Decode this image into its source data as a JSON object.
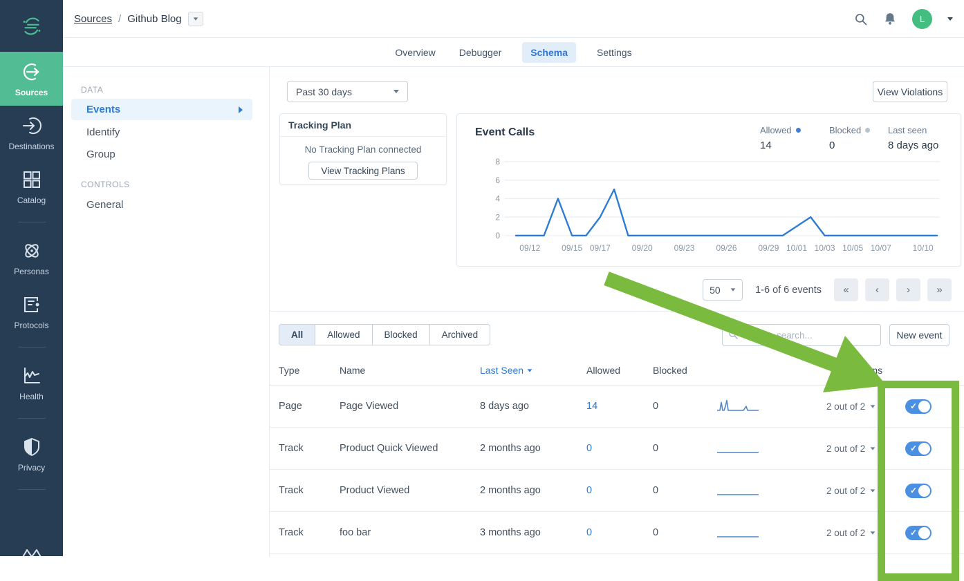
{
  "colors": {
    "sidebar_navy": "#263D54",
    "brand_green": "#52BD94",
    "avatar_green": "#43BD80",
    "link_blue": "#2E7BD3",
    "chart_line": "#2E7BD3",
    "blocked_gray": "#B9C2CC",
    "annotation_green": "#79BA3F",
    "toggle_blue": "#4A90E2"
  },
  "sidebar": {
    "items": [
      {
        "label": "Sources",
        "icon": "sources-icon",
        "active": true
      },
      {
        "label": "Destinations",
        "icon": "destinations-icon",
        "active": false
      },
      {
        "label": "Catalog",
        "icon": "catalog-icon",
        "active": false
      },
      {
        "label": "Personas",
        "icon": "personas-icon",
        "active": false
      },
      {
        "label": "Protocols",
        "icon": "protocols-icon",
        "active": false
      },
      {
        "label": "Health",
        "icon": "health-icon",
        "active": false
      },
      {
        "label": "Privacy",
        "icon": "privacy-icon",
        "active": false
      }
    ]
  },
  "header": {
    "breadcrumb": {
      "root": "Sources",
      "sep": "/",
      "current": "Github Blog"
    },
    "avatar_initial": "L"
  },
  "tabs": {
    "items": [
      {
        "label": "Overview",
        "active": false
      },
      {
        "label": "Debugger",
        "active": false
      },
      {
        "label": "Schema",
        "active": true
      },
      {
        "label": "Settings",
        "active": false
      }
    ]
  },
  "left_panel": {
    "sections": [
      {
        "heading": "DATA",
        "items": [
          {
            "label": "Events",
            "active": true
          },
          {
            "label": "Identify",
            "active": false
          },
          {
            "label": "Group",
            "active": false
          }
        ]
      },
      {
        "heading": "CONTROLS",
        "items": [
          {
            "label": "General",
            "active": false
          }
        ]
      }
    ]
  },
  "toolbar": {
    "date_range": "Past 30 days",
    "view_violations": "View Violations"
  },
  "tracking_plan": {
    "title": "Tracking Plan",
    "message": "No Tracking Plan connected",
    "button": "View Tracking Plans"
  },
  "event_calls": {
    "title": "Event Calls",
    "legend": {
      "allowed_label": "Allowed",
      "allowed_value": "14",
      "blocked_label": "Blocked",
      "blocked_value": "0",
      "last_seen_label": "Last seen",
      "last_seen_value": "8 days ago"
    }
  },
  "chart_data": {
    "type": "line",
    "title": "Event Calls",
    "series_name": "Allowed",
    "x": [
      "09/11",
      "09/12",
      "09/13",
      "09/14",
      "09/15",
      "09/16",
      "09/17",
      "09/18",
      "09/19",
      "09/20",
      "09/21",
      "09/22",
      "09/23",
      "09/24",
      "09/25",
      "09/26",
      "09/27",
      "09/28",
      "09/29",
      "09/30",
      "10/01",
      "10/02",
      "10/03",
      "10/04",
      "10/05",
      "10/06",
      "10/07",
      "10/08",
      "10/09",
      "10/10",
      "10/11"
    ],
    "values": [
      0,
      0,
      0,
      4,
      0,
      0,
      2,
      5,
      0,
      0,
      0,
      0,
      0,
      0,
      0,
      0,
      0,
      0,
      0,
      0,
      1,
      2,
      0,
      0,
      0,
      0,
      0,
      0,
      0,
      0,
      0
    ],
    "x_tick_labels": [
      "09/12",
      "09/15",
      "09/17",
      "09/20",
      "09/23",
      "09/26",
      "09/29",
      "10/01",
      "10/03",
      "10/05",
      "10/07",
      "10/10"
    ],
    "yticks": [
      0,
      2,
      4,
      6,
      8
    ],
    "ylim": [
      0,
      8
    ],
    "grid": true,
    "legend_position": "top-right"
  },
  "pagination": {
    "page_size": "50",
    "range_text": "1-6 of 6 events",
    "first": "«",
    "prev": "‹",
    "next": "›",
    "last": "»"
  },
  "filters": {
    "items": [
      {
        "label": "All",
        "active": true
      },
      {
        "label": "Allowed",
        "active": false
      },
      {
        "label": "Blocked",
        "active": false
      },
      {
        "label": "Archived",
        "active": false
      }
    ]
  },
  "search": {
    "placeholder": "Type to search..."
  },
  "actions": {
    "new_event": "New event"
  },
  "table": {
    "columns": {
      "type": "Type",
      "name": "Name",
      "last_seen": "Last Seen",
      "allowed": "Allowed",
      "blocked": "Blocked",
      "integrations": "Integrations"
    },
    "sorted_by": "Last Seen",
    "rows": [
      {
        "type": "Page",
        "name": "Page Viewed",
        "last_seen": "8 days ago",
        "allowed": "14",
        "blocked": "0",
        "integrations": "2 out of 2",
        "toggle_on": true,
        "spark": [
          0,
          0,
          0,
          4,
          0,
          0,
          2,
          5,
          0,
          0,
          0,
          0,
          0,
          0,
          0,
          0,
          0,
          0,
          0,
          0,
          1,
          2,
          0,
          0,
          0,
          0,
          0,
          0,
          0,
          0,
          0
        ]
      },
      {
        "type": "Track",
        "name": "Product Quick Viewed",
        "last_seen": "2 months ago",
        "allowed": "0",
        "blocked": "0",
        "integrations": "2 out of 2",
        "toggle_on": true,
        "spark": [
          0,
          0
        ]
      },
      {
        "type": "Track",
        "name": "Product Viewed",
        "last_seen": "2 months ago",
        "allowed": "0",
        "blocked": "0",
        "integrations": "2 out of 2",
        "toggle_on": true,
        "spark": [
          0,
          0
        ]
      },
      {
        "type": "Track",
        "name": "foo bar",
        "last_seen": "3 months ago",
        "allowed": "0",
        "blocked": "0",
        "integrations": "2 out of 2",
        "toggle_on": true,
        "spark": [
          0,
          0
        ]
      }
    ]
  },
  "icons": {
    "check": "✓"
  },
  "annotation": {
    "arrow": true,
    "highlight_box": true,
    "color": "#79BA3F"
  }
}
